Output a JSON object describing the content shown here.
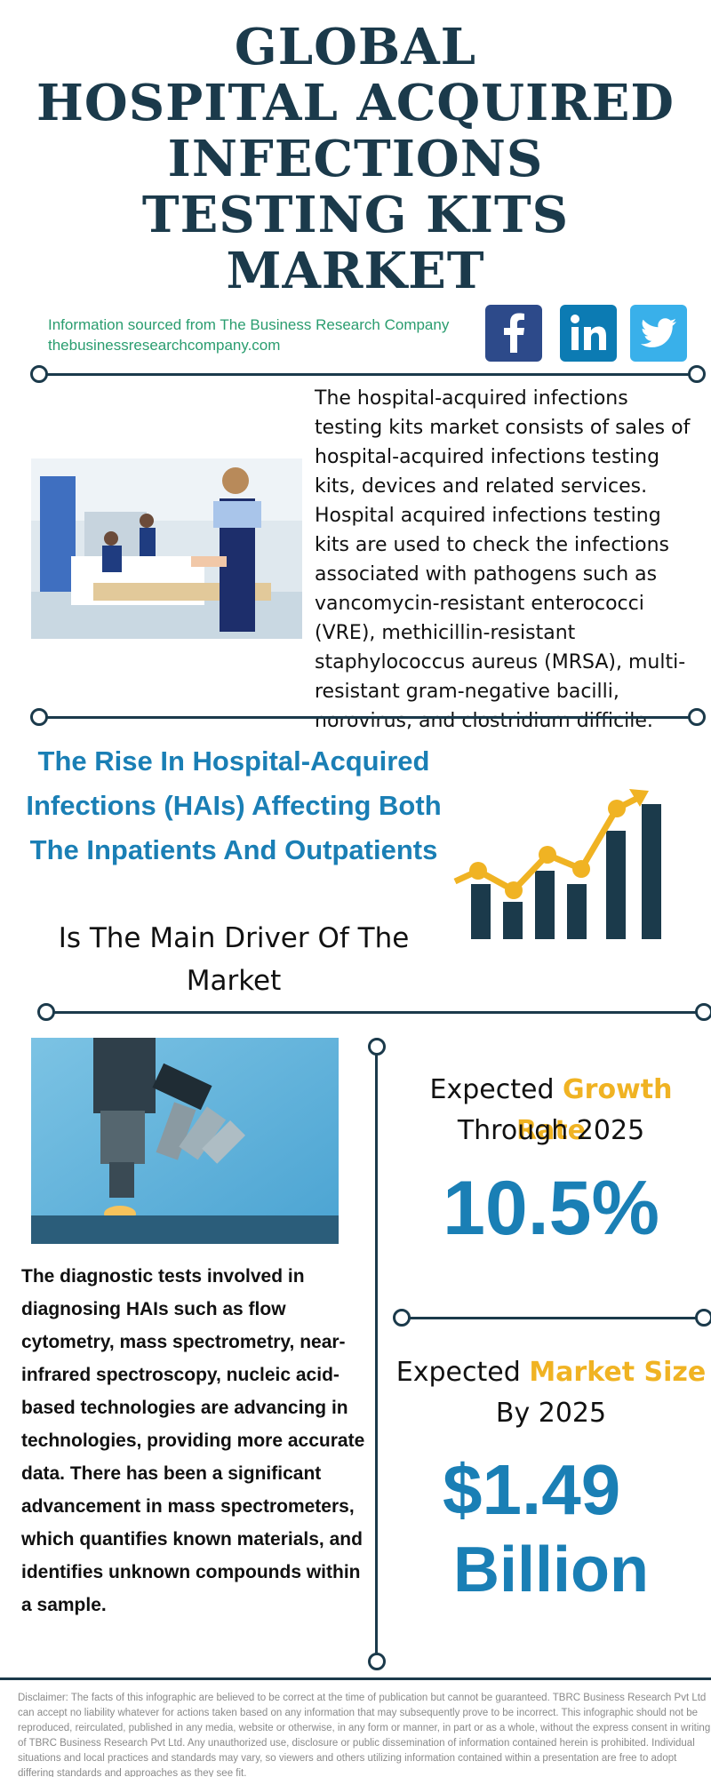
{
  "title_lines": [
    "GLOBAL",
    "HOSPITAL ACQUIRED",
    "INFECTIONS",
    "TESTING KITS",
    "MARKET"
  ],
  "source": {
    "line1": "Information sourced from The Business Research Company",
    "line2": "thebusinessresearchcompany.com"
  },
  "social": {
    "facebook": "facebook-icon",
    "linkedin": "linkedin-icon",
    "twitter": "twitter-icon"
  },
  "intro": "The hospital-acquired infections testing kits market consists of sales of hospital-acquired infections testing kits, devices and related services. Hospital acquired infections testing kits are used to check the infections associated with pathogens such as vancomycin-resistant enterococci (VRE), methicillin-resistant staphylococcus aureus (MRSA), multi-resistant gram-negative bacilli, norovirus, and clostridium difficile.",
  "driver": {
    "headline": "The Rise In Hospital-Acquired Infections (HAIs) Affecting Both The Inpatients And Outpatients",
    "subline": "Is The Main Driver Of The Market"
  },
  "growth": {
    "prefix": "Expected ",
    "highlight": "Growth Rate",
    "period": "Through 2025",
    "value": "10.5%"
  },
  "market_size": {
    "prefix": "Expected ",
    "highlight": "Market Size",
    "period": "By 2025",
    "value_line1": "$1.49",
    "value_line2": "Billion"
  },
  "detail": "The diagnostic tests involved in diagnosing HAIs such as flow cytometry, mass spectrometry, near-infrared spectroscopy, nucleic acid-based technologies are advancing in technologies, providing more accurate data. There has been a significant advancement in mass spectrometers, which quantifies known materials, and identifies unknown compounds within a sample.",
  "disclaimer": "Disclaimer: The facts of this infographic are believed to be correct at the time of publication but cannot be guaranteed. TBRC Business Research Pvt Ltd can accept no liability whatever for actions taken based on any information that may subsequently prove to be incorrect. This infographic should not be reproduced, reirculated, published in any media, website or otherwise, in any form or manner, in part or as a whole, without the express consent in writing of TBRC Business Research Pvt Ltd. Any unauthorized use, disclosure or public dissemination of information contained herein is prohibited. Individual situations and local practices and standards may vary, so viewers and others utilizing information contained within a presentation are free to adopt differing standards and approaches as they see fit.",
  "colors": {
    "navy": "#1b3a4b",
    "blue": "#1a7fb5",
    "gold": "#f0b323",
    "green": "#2a9d6f"
  }
}
